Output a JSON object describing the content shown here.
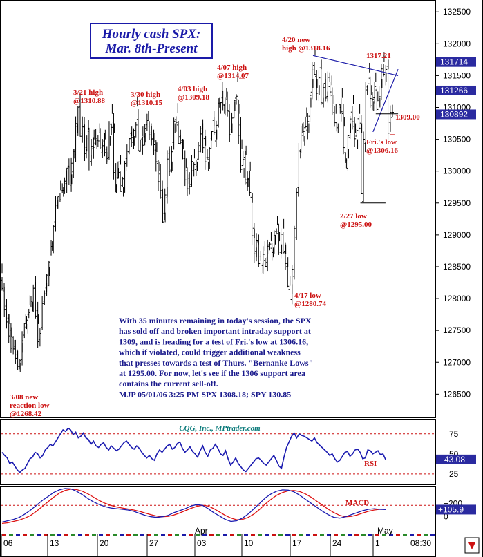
{
  "title": [
    "Hourly cash SPX:",
    "Mar. 8th-Present"
  ],
  "credit": "CQG, Inc., MPtrader.com",
  "chart_data": {
    "type": "ohlc",
    "price_panel": {
      "ylim": [
        1262000,
        1326000
      ],
      "y_ticks": [
        1265000,
        1270000,
        1275000,
        1280000,
        1285000,
        1290000,
        1295000,
        1300000,
        1305000,
        1310000,
        1315000,
        1320000,
        1325000
      ],
      "y_tick_labels": [
        "126500",
        "127000",
        "127500",
        "128000",
        "128500",
        "129000",
        "129500",
        "130000",
        "130500",
        "131000",
        "131500",
        "132000",
        "132500"
      ],
      "price_tags": [
        {
          "label": "131714",
          "value": 1317140
        },
        {
          "label": "131266",
          "value": 1312660
        },
        {
          "label": "130892",
          "value": 1308920
        }
      ],
      "path": [
        [
          0,
          1284000
        ],
        [
          3,
          1281000
        ],
        [
          6,
          1278500
        ],
        [
          10,
          1276000
        ],
        [
          14,
          1274000
        ],
        [
          18,
          1272000
        ],
        [
          22,
          1270500
        ],
        [
          26,
          1268420
        ],
        [
          30,
          1271500
        ],
        [
          34,
          1276000
        ],
        [
          37,
          1274500
        ],
        [
          40,
          1279000
        ],
        [
          44,
          1278000
        ],
        [
          48,
          1282000
        ],
        [
          52,
          1276000
        ],
        [
          56,
          1271500
        ],
        [
          60,
          1279000
        ],
        [
          64,
          1281000
        ],
        [
          68,
          1283500
        ],
        [
          72,
          1287500
        ],
        [
          76,
          1290500
        ],
        [
          80,
          1294000
        ],
        [
          84,
          1297000
        ],
        [
          88,
          1296000
        ],
        [
          92,
          1298500
        ],
        [
          96,
          1300500
        ],
        [
          100,
          1298000
        ],
        [
          104,
          1302000
        ],
        [
          108,
          1306000
        ],
        [
          112,
          1310880
        ],
        [
          115,
          1305000
        ],
        [
          118,
          1307000
        ],
        [
          121,
          1302000
        ],
        [
          124,
          1306500
        ],
        [
          128,
          1301000
        ],
        [
          132,
          1305000
        ],
        [
          136,
          1303500
        ],
        [
          140,
          1306000
        ],
        [
          144,
          1303000
        ],
        [
          148,
          1305000
        ],
        [
          152,
          1301500
        ],
        [
          155,
          1304000
        ],
        [
          158,
          1309000
        ],
        [
          161,
          1306000
        ],
        [
          164,
          1296500
        ],
        [
          167,
          1299000
        ],
        [
          170,
          1301000
        ],
        [
          174,
          1296000
        ],
        [
          178,
          1300000
        ],
        [
          182,
          1303000
        ],
        [
          186,
          1305500
        ],
        [
          190,
          1304000
        ],
        [
          194,
          1310150
        ],
        [
          198,
          1303000
        ],
        [
          202,
          1305500
        ],
        [
          206,
          1304500
        ],
        [
          210,
          1308000
        ],
        [
          214,
          1306000
        ],
        [
          218,
          1304500
        ],
        [
          222,
          1303000
        ],
        [
          226,
          1300000
        ],
        [
          230,
          1297000
        ],
        [
          234,
          1292000
        ],
        [
          237,
          1296000
        ],
        [
          240,
          1302000
        ],
        [
          244,
          1300000
        ],
        [
          248,
          1306000
        ],
        [
          252,
          1309180
        ],
        [
          256,
          1305000
        ],
        [
          260,
          1303500
        ],
        [
          264,
          1300500
        ],
        [
          268,
          1298000
        ],
        [
          272,
          1297500
        ],
        [
          276,
          1302000
        ],
        [
          280,
          1300000
        ],
        [
          284,
          1303000
        ],
        [
          288,
          1306000
        ],
        [
          292,
          1304000
        ],
        [
          296,
          1300000
        ],
        [
          300,
          1303500
        ],
        [
          304,
          1307000
        ],
        [
          308,
          1305000
        ],
        [
          312,
          1310000
        ],
        [
          316,
          1312500
        ],
        [
          319,
          1309000
        ],
        [
          322,
          1311500
        ],
        [
          326,
          1309000
        ],
        [
          330,
          1306000
        ],
        [
          334,
          1309500
        ],
        [
          338,
          1314070
        ],
        [
          341,
          1309000
        ],
        [
          344,
          1303500
        ],
        [
          347,
          1299000
        ],
        [
          350,
          1302500
        ],
        [
          353,
          1297500
        ],
        [
          356,
          1300000
        ],
        [
          359,
          1295000
        ],
        [
          362,
          1289500
        ],
        [
          365,
          1286500
        ],
        [
          368,
          1288500
        ],
        [
          371,
          1286000
        ],
        [
          374,
          1284000
        ],
        [
          377,
          1287500
        ],
        [
          380,
          1285000
        ],
        [
          383,
          1287000
        ],
        [
          386,
          1289000
        ],
        [
          389,
          1286500
        ],
        [
          392,
          1288500
        ],
        [
          395,
          1291500
        ],
        [
          398,
          1289000
        ],
        [
          401,
          1287000
        ],
        [
          404,
          1291000
        ],
        [
          407,
          1287000
        ],
        [
          410,
          1285000
        ],
        [
          413,
          1282000
        ],
        [
          416,
          1280740
        ],
        [
          419,
          1284000
        ],
        [
          422,
          1289500
        ],
        [
          425,
          1296000
        ],
        [
          428,
          1302000
        ],
        [
          431,
          1306000
        ],
        [
          434,
          1304000
        ],
        [
          437,
          1308500
        ],
        [
          440,
          1306000
        ],
        [
          443,
          1310000
        ],
        [
          446,
          1313000
        ],
        [
          449,
          1318160
        ],
        [
          452,
          1313000
        ],
        [
          455,
          1312000
        ],
        [
          458,
          1316000
        ],
        [
          461,
          1310000
        ],
        [
          464,
          1313000
        ],
        [
          467,
          1311000
        ],
        [
          470,
          1314000
        ],
        [
          473,
          1313500
        ],
        [
          476,
          1310500
        ],
        [
          479,
          1309000
        ],
        [
          482,
          1306000
        ],
        [
          485,
          1309000
        ],
        [
          488,
          1311500
        ],
        [
          491,
          1307000
        ],
        [
          494,
          1300500
        ],
        [
          497,
          1302000
        ],
        [
          500,
          1306000
        ],
        [
          504,
          1310500
        ],
        [
          507,
          1306000
        ],
        [
          510,
          1303500
        ],
        [
          513,
          1309000
        ],
        [
          516,
          1306000
        ],
        [
          518,
          1295000
        ],
        [
          521,
          1303000
        ],
        [
          524,
          1312000
        ],
        [
          527,
          1315500
        ],
        [
          530,
          1312000
        ],
        [
          533,
          1309500
        ],
        [
          536,
          1314000
        ],
        [
          539,
          1311000
        ],
        [
          542,
          1310000
        ],
        [
          545,
          1313000
        ],
        [
          548,
          1317210
        ],
        [
          551,
          1314000
        ],
        [
          554,
          1316000
        ],
        [
          557,
          1306160
        ],
        [
          560,
          1308920
        ]
      ],
      "trendlines": [
        {
          "from": [
            446,
            1318160
          ],
          "to": [
            568,
            1315000
          ]
        },
        {
          "from": [
            532,
            1306160
          ],
          "to": [
            568,
            1316000
          ]
        }
      ],
      "levels": [
        {
          "value": 1295000,
          "from_bar": 514,
          "to_bar": 550,
          "label": "2/27 low @1295.00"
        },
        {
          "value": 1309000,
          "from_bar": 536,
          "to_bar": 568,
          "label": "1309.00"
        }
      ],
      "annotations": [
        {
          "lines": [
            "3/08 new",
            "reaction low",
            "@1268.42"
          ]
        },
        {
          "lines": [
            "3/21 high",
            "@1310.88"
          ]
        },
        {
          "lines": [
            "3/30 high",
            "@1310.15"
          ]
        },
        {
          "lines": [
            "4/03 high",
            "@1309.18"
          ]
        },
        {
          "lines": [
            "4/07 high",
            "@1314.07"
          ]
        },
        {
          "lines": [
            "4/20 new",
            "high @1318.16"
          ]
        },
        {
          "lines": [
            "1317.21"
          ]
        },
        {
          "lines": [
            "1309.00"
          ]
        },
        {
          "lines": [
            "Fri.'s low",
            "@1306.16"
          ]
        },
        {
          "lines": [
            "2/27 low",
            "@1295.00"
          ]
        },
        {
          "lines": [
            "4/17 low",
            "@1280.74"
          ]
        }
      ],
      "commentary": [
        "With 35 minutes remaining in today's session, the SPX",
        "has sold off and broken important intraday support at",
        "1309, and is heading for a test of Fri.'s low at 1306.16,",
        "which if violated, could trigger additional weakness",
        "that presses towards a test of Thurs. \"Bernanke Lows\"",
        "at 1295.00. For now, let's see if the 1306 support area",
        "contains the current sell-off.",
        "MJP  05/01/06 3:25 PM SPX 1308.18; SPY 130.85"
      ]
    },
    "rsi_panel": {
      "name": "RSI",
      "ylim": [
        12,
        92
      ],
      "y_tick_labels": [
        "75",
        "50",
        "25"
      ],
      "y_ticks": [
        75,
        50,
        25
      ],
      "levels": [
        75,
        25
      ],
      "current_tag": "43.08",
      "current_value": 43.08,
      "values": [
        52,
        48,
        45,
        38,
        40,
        35,
        30,
        27,
        30,
        32,
        38,
        44,
        46,
        52,
        50,
        45,
        48,
        55,
        58,
        62,
        60,
        65,
        70,
        75,
        80,
        78,
        82,
        80,
        74,
        77,
        70,
        72,
        76,
        70,
        68,
        62,
        66,
        60,
        58,
        62,
        64,
        58,
        55,
        60,
        57,
        54,
        56,
        60,
        64,
        66,
        62,
        58,
        56,
        60,
        57,
        52,
        48,
        45,
        48,
        44,
        42,
        50,
        55,
        52,
        56,
        60,
        62,
        56,
        58,
        63,
        65,
        57,
        52,
        55,
        59,
        53,
        50,
        46,
        54,
        60,
        52,
        47,
        55,
        57,
        62,
        57,
        50,
        48,
        54,
        44,
        36,
        40,
        45,
        38,
        34,
        30,
        28,
        32,
        36,
        40,
        44,
        45,
        42,
        38,
        36,
        40,
        44,
        48,
        42,
        35,
        32,
        46,
        58,
        65,
        72,
        76,
        70,
        75,
        73,
        72,
        70,
        68,
        66,
        70,
        64,
        61,
        58,
        55,
        52,
        48,
        50,
        44,
        40,
        42,
        47,
        52,
        53,
        47,
        50,
        55,
        56,
        52,
        44,
        45,
        55,
        54,
        50,
        52,
        54,
        49,
        50,
        43.08
      ]
    },
    "macd_panel": {
      "name": "MACD",
      "y_tick_labels": [
        "+200",
        "0"
      ],
      "y_ticks": [
        200,
        0
      ],
      "dashed_level": 170,
      "current_tag": "+105.9",
      "current_value": 105.9,
      "ylim": [
        -250,
        450
      ],
      "macd": [
        -80,
        -60,
        -40,
        -10,
        40,
        100,
        170,
        240,
        300,
        360,
        400,
        420,
        415,
        380,
        330,
        270,
        220,
        180,
        150,
        130,
        120,
        110,
        100,
        80,
        50,
        20,
        0,
        -10,
        0,
        20,
        60,
        90,
        120,
        160,
        180,
        170,
        120,
        60,
        10,
        -40,
        -70,
        -60,
        -20,
        40,
        120,
        200,
        280,
        340,
        380,
        400,
        395,
        370,
        320,
        260,
        200,
        140,
        80,
        30,
        -10,
        -20,
        0,
        30,
        60,
        90,
        110,
        120,
        110,
        105.9
      ],
      "signal": [
        -100,
        -90,
        -70,
        -50,
        -20,
        20,
        80,
        150,
        220,
        290,
        350,
        390,
        410,
        405,
        380,
        340,
        290,
        240,
        200,
        170,
        145,
        130,
        115,
        100,
        80,
        55,
        30,
        10,
        0,
        5,
        25,
        55,
        90,
        125,
        155,
        170,
        160,
        120,
        70,
        20,
        -20,
        -45,
        -40,
        -10,
        40,
        110,
        190,
        260,
        320,
        360,
        385,
        390,
        375,
        340,
        290,
        230,
        170,
        110,
        60,
        20,
        0,
        5,
        25,
        55,
        80,
        100,
        110,
        112
      ]
    },
    "x_axis": {
      "tick_labels": [
        "06",
        "13",
        "20",
        "27",
        "03",
        "10",
        "17",
        "24",
        "1"
      ],
      "month_labels": [
        "Apr",
        "May"
      ],
      "clock": "08:30"
    }
  }
}
